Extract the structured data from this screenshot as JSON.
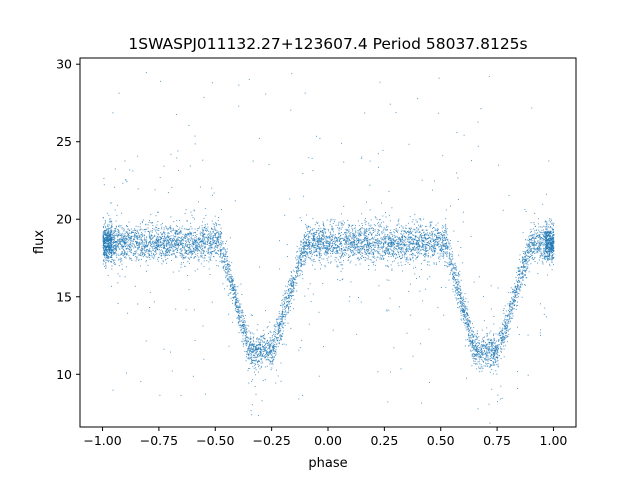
{
  "chart_data": {
    "type": "scatter",
    "title": "1SWASPJ011132.27+123607.4 Period 58037.8125s",
    "xlabel": "phase",
    "ylabel": "flux",
    "xlim": [
      -1.1,
      1.1
    ],
    "ylim": [
      6.6,
      30.4
    ],
    "xticks": [
      -1.0,
      -0.75,
      -0.5,
      -0.25,
      0.0,
      0.25,
      0.5,
      0.75,
      1.0
    ],
    "xtick_labels": [
      "−1.00",
      "−0.75",
      "−0.50",
      "−0.25",
      "0.00",
      "0.25",
      "0.50",
      "0.75",
      "1.00"
    ],
    "yticks": [
      10,
      15,
      20,
      25,
      30
    ],
    "ytick_labels": [
      "10",
      "15",
      "20",
      "25",
      "30"
    ],
    "grid": false,
    "legend": "none",
    "point_color": "#1f77b4",
    "series": [
      {
        "x_range": [
          -1.0,
          1.0
        ],
        "baseline_flux": 18.5,
        "baseline_spread": 0.6,
        "eclipses": [
          {
            "center_phase": -0.3,
            "min_flux": 11.5,
            "ingress_start": -0.48,
            "egress_end": -0.1,
            "bottom_start": -0.35,
            "bottom_end": -0.25
          },
          {
            "center_phase": 0.7,
            "min_flux": 11.5,
            "ingress_start": 0.52,
            "egress_end": 0.9,
            "bottom_start": 0.65,
            "bottom_end": 0.75
          }
        ],
        "outlier_range": [
          7.8,
          29.5
        ]
      }
    ]
  }
}
